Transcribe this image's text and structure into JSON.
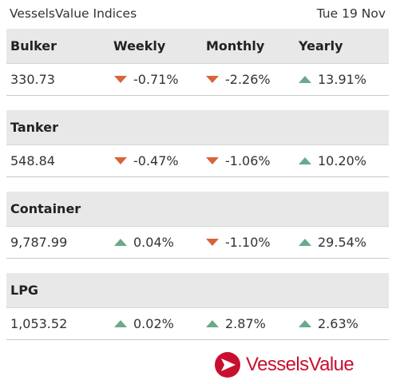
{
  "header": {
    "title": "VesselsValue Indices",
    "date": "Tue 19 Nov"
  },
  "columns": {
    "weekly": "Weekly",
    "monthly": "Monthly",
    "yearly": "Yearly"
  },
  "indices": [
    {
      "name": "Bulker",
      "value": "330.73",
      "weekly": "-0.71%",
      "weekly_dir": "down",
      "monthly": "-2.26%",
      "monthly_dir": "down",
      "yearly": "13.91%",
      "yearly_dir": "up"
    },
    {
      "name": "Tanker",
      "value": "548.84",
      "weekly": "-0.47%",
      "weekly_dir": "down",
      "monthly": "-1.06%",
      "monthly_dir": "down",
      "yearly": "10.20%",
      "yearly_dir": "up"
    },
    {
      "name": "Container",
      "value": "9,787.99",
      "weekly": "0.04%",
      "weekly_dir": "up",
      "monthly": "-1.10%",
      "monthly_dir": "down",
      "yearly": "29.54%",
      "yearly_dir": "up"
    },
    {
      "name": "LPG",
      "value": "1,053.52",
      "weekly": "0.02%",
      "weekly_dir": "up",
      "monthly": "2.87%",
      "monthly_dir": "up",
      "yearly": "2.63%",
      "yearly_dir": "up"
    }
  ],
  "logo": {
    "text": "VesselsValue"
  },
  "colors": {
    "down": "#d9633a",
    "up": "#6aa98a",
    "brand": "#c8102e"
  }
}
